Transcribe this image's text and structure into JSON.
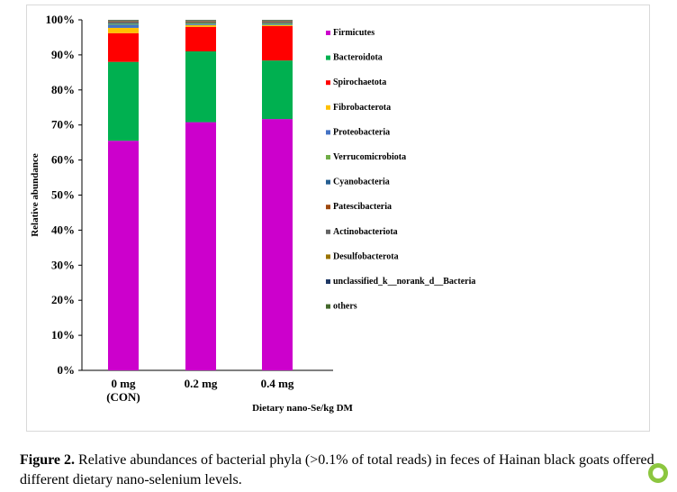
{
  "chart_data": {
    "type": "bar",
    "stacked": true,
    "categories": [
      [
        "0 mg",
        "(CON)"
      ],
      [
        "0.2 mg"
      ],
      [
        "0.4 mg"
      ]
    ],
    "ylim": [
      0,
      100
    ],
    "yticks": [
      "0%",
      "10%",
      "20%",
      "30%",
      "40%",
      "50%",
      "60%",
      "70%",
      "80%",
      "90%",
      "100%"
    ],
    "ylabel": "Relative abundance",
    "xlabel": "Dietary nano-Se/kg DM",
    "legend_position": "right",
    "grid": false,
    "series": [
      {
        "name": "Firmicutes",
        "color": "#cc00cc",
        "values": [
          65.5,
          70.8,
          71.7
        ]
      },
      {
        "name": "Bacteroidota",
        "color": "#00b050",
        "values": [
          22.5,
          20.2,
          16.7
        ]
      },
      {
        "name": "Spirochaetota",
        "color": "#ff0000",
        "values": [
          8.2,
          7.0,
          9.8
        ]
      },
      {
        "name": "Fibrobacterota",
        "color": "#ffc000",
        "values": [
          1.5,
          0.5,
          0.3
        ]
      },
      {
        "name": "Proteobacteria",
        "color": "#4472c4",
        "values": [
          0.9,
          0.3,
          0.2
        ]
      },
      {
        "name": "Verrucomicrobiota",
        "color": "#70ad47",
        "values": [
          0.3,
          0.3,
          0.3
        ]
      },
      {
        "name": "Cyanobacteria",
        "color": "#255e91",
        "values": [
          0.3,
          0.2,
          0.2
        ]
      },
      {
        "name": "Patescibacteria",
        "color": "#9e480e",
        "values": [
          0.2,
          0.2,
          0.2
        ]
      },
      {
        "name": "Actinobacteriota",
        "color": "#636363",
        "values": [
          0.3,
          0.2,
          0.3
        ]
      },
      {
        "name": "Desulfobacterota",
        "color": "#997300",
        "values": [
          0.1,
          0.1,
          0.1
        ]
      },
      {
        "name": "unclassified_k__norank_d__Bacteria",
        "color": "#1f3864",
        "values": [
          0.1,
          0.1,
          0.1
        ]
      },
      {
        "name": "others",
        "color": "#43682b",
        "values": [
          0.1,
          0.1,
          0.1
        ]
      }
    ]
  },
  "caption": {
    "label": "Figure 2.",
    "text": " Relative abundances of bacterial phyla (>0.1% of total reads) in feces of Hainan black goats offered different dietary nano-selenium levels."
  }
}
